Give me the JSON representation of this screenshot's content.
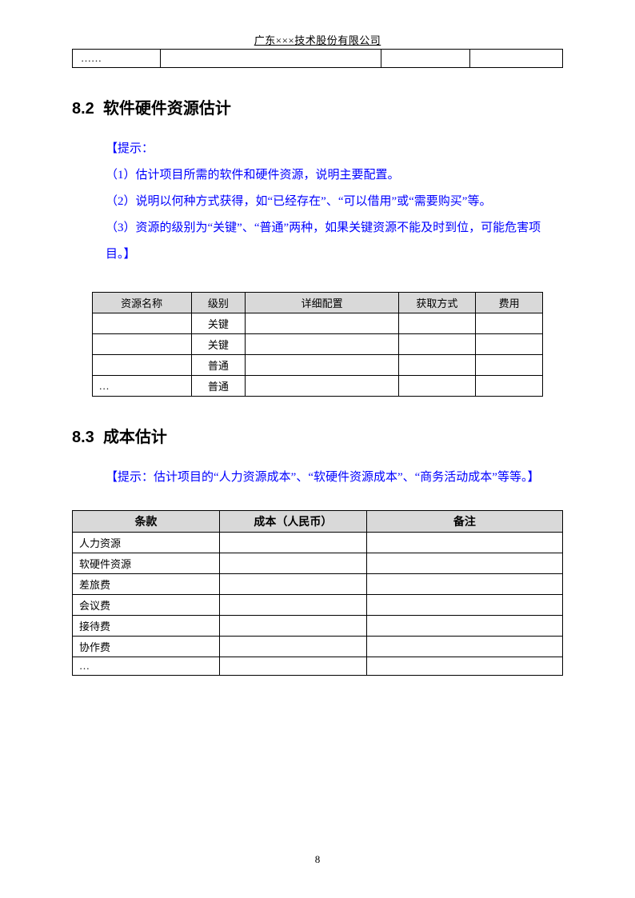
{
  "header": {
    "company": "广东×××技术股份有限公司"
  },
  "top_strip": {
    "c1": "……",
    "c2": "",
    "c3": "",
    "c4": ""
  },
  "section82": {
    "number": "8.2",
    "title": "软件硬件资源估计",
    "tip_label": "【提示：",
    "tip1": "（1）估计项目所需的软件和硬件资源，说明主要配置。",
    "tip2": "（2）说明以何种方式获得，如“已经存在”、“可以借用”或“需要购买”等。",
    "tip3": "（3）资源的级别为“关键”、“普通”两种，如果关键资源不能及时到位，可能危害项目。】",
    "table": {
      "headers": {
        "name": "资源名称",
        "level": "级别",
        "config": "详细配置",
        "method": "获取方式",
        "cost": "费用"
      },
      "rows": [
        {
          "name": "",
          "level": "关键",
          "config": "",
          "method": "",
          "cost": ""
        },
        {
          "name": "",
          "level": "关键",
          "config": "",
          "method": "",
          "cost": ""
        },
        {
          "name": "",
          "level": "普通",
          "config": "",
          "method": "",
          "cost": ""
        },
        {
          "name": "…",
          "level": "普通",
          "config": "",
          "method": "",
          "cost": ""
        }
      ]
    }
  },
  "section83": {
    "number": "8.3",
    "title": "成本估计",
    "tip": "【提示：估计项目的“人力资源成本”、“软硬件资源成本”、“商务活动成本”等等。】",
    "table": {
      "headers": {
        "item": "条款",
        "cost": "成本（人民币）",
        "note": "备注"
      },
      "rows": [
        {
          "item": "人力资源",
          "cost": "",
          "note": ""
        },
        {
          "item": "软硬件资源",
          "cost": "",
          "note": ""
        },
        {
          "item": "差旅费",
          "cost": "",
          "note": ""
        },
        {
          "item": "会议费",
          "cost": "",
          "note": ""
        },
        {
          "item": "接待费",
          "cost": "",
          "note": ""
        },
        {
          "item": "协作费",
          "cost": "",
          "note": ""
        },
        {
          "item": "…",
          "cost": "",
          "note": ""
        }
      ]
    }
  },
  "page_number": "8"
}
